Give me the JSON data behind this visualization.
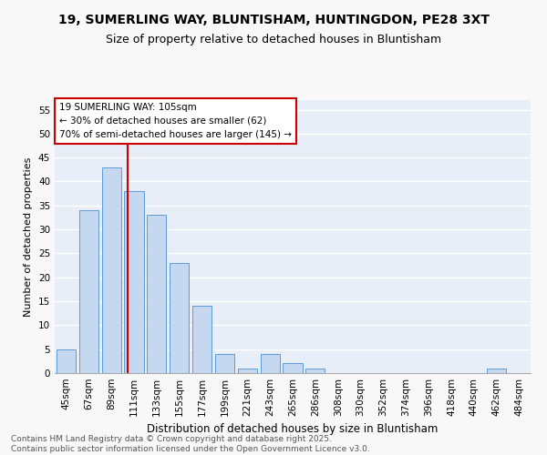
{
  "title1": "19, SUMERLING WAY, BLUNTISHAM, HUNTINGDON, PE28 3XT",
  "title2": "Size of property relative to detached houses in Bluntisham",
  "xlabel": "Distribution of detached houses by size in Bluntisham",
  "ylabel": "Number of detached properties",
  "categories": [
    "45sqm",
    "67sqm",
    "89sqm",
    "111sqm",
    "133sqm",
    "155sqm",
    "177sqm",
    "199sqm",
    "221sqm",
    "243sqm",
    "265sqm",
    "286sqm",
    "308sqm",
    "330sqm",
    "352sqm",
    "374sqm",
    "396sqm",
    "418sqm",
    "440sqm",
    "462sqm",
    "484sqm"
  ],
  "values": [
    5,
    34,
    43,
    38,
    33,
    23,
    14,
    4,
    1,
    4,
    2,
    1,
    0,
    0,
    0,
    0,
    0,
    0,
    0,
    1,
    0
  ],
  "bar_color": "#c5d8f0",
  "bar_edge_color": "#5b9bd5",
  "annotation_text_line1": "19 SUMERLING WAY: 105sqm",
  "annotation_text_line2": "← 30% of detached houses are smaller (62)",
  "annotation_text_line3": "70% of semi-detached houses are larger (145) →",
  "annotation_box_facecolor": "#ffffff",
  "annotation_box_edgecolor": "#cc0000",
  "vline_x": 2.73,
  "vline_color": "#cc0000",
  "ylim": [
    0,
    57
  ],
  "yticks": [
    0,
    5,
    10,
    15,
    20,
    25,
    30,
    35,
    40,
    45,
    50,
    55
  ],
  "plot_bg_color": "#e8eef7",
  "fig_bg_color": "#f8f8f8",
  "grid_color": "#ffffff",
  "footer1": "Contains HM Land Registry data © Crown copyright and database right 2025.",
  "footer2": "Contains public sector information licensed under the Open Government Licence v3.0.",
  "title1_fontsize": 10,
  "title2_fontsize": 9,
  "xlabel_fontsize": 8.5,
  "ylabel_fontsize": 8,
  "tick_fontsize": 7.5,
  "annotation_fontsize": 7.5,
  "footer_fontsize": 6.5
}
